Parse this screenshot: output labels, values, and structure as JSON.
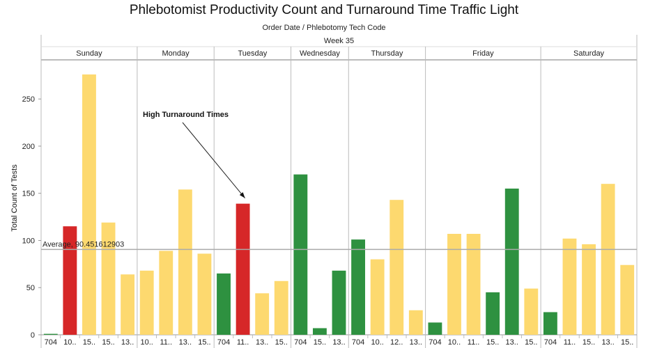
{
  "chart_data": {
    "type": "bar",
    "title": "Phlebotomist Productivity Count and Turnaround Time Traffic Light",
    "subtitle": "Order Date  /  Phlebotomy Tech Code",
    "header": "Week 35",
    "ylabel": "Total Count of Tests",
    "ylim": [
      0,
      290
    ],
    "yticks": [
      0,
      50,
      100,
      150,
      200,
      250
    ],
    "grid": false,
    "colors": {
      "red": "#d62728",
      "yellow": "#fdd96f",
      "green": "#2e9140"
    },
    "average": {
      "value": 90.451612903,
      "label": "Average, 90.451612903"
    },
    "annotation": {
      "text": "High Turnaround Times",
      "target_day": "Tuesday",
      "target_index": 1
    },
    "days": [
      {
        "name": "Sunday",
        "bars": [
          {
            "label": "704",
            "value": 1,
            "color": "green"
          },
          {
            "label": "10..",
            "value": 115,
            "color": "red"
          },
          {
            "label": "15..",
            "value": 276,
            "color": "yellow"
          },
          {
            "label": "15..",
            "value": 119,
            "color": "yellow"
          },
          {
            "label": "13..",
            "value": 64,
            "color": "yellow"
          }
        ]
      },
      {
        "name": "Monday",
        "bars": [
          {
            "label": "10..",
            "value": 68,
            "color": "yellow"
          },
          {
            "label": "11..",
            "value": 89,
            "color": "yellow"
          },
          {
            "label": "13..",
            "value": 154,
            "color": "yellow"
          },
          {
            "label": "15..",
            "value": 86,
            "color": "yellow"
          }
        ]
      },
      {
        "name": "Tuesday",
        "bars": [
          {
            "label": "704",
            "value": 65,
            "color": "green"
          },
          {
            "label": "11..",
            "value": 139,
            "color": "red"
          },
          {
            "label": "13..",
            "value": 44,
            "color": "yellow"
          },
          {
            "label": "15..",
            "value": 57,
            "color": "yellow"
          }
        ]
      },
      {
        "name": "Wednesday",
        "bars": [
          {
            "label": "704",
            "value": 170,
            "color": "green"
          },
          {
            "label": "15..",
            "value": 7,
            "color": "green"
          },
          {
            "label": "13..",
            "value": 68,
            "color": "green"
          }
        ]
      },
      {
        "name": "Thursday",
        "bars": [
          {
            "label": "704",
            "value": 101,
            "color": "green"
          },
          {
            "label": "10..",
            "value": 80,
            "color": "yellow"
          },
          {
            "label": "12..",
            "value": 143,
            "color": "yellow"
          },
          {
            "label": "13..",
            "value": 26,
            "color": "yellow"
          }
        ]
      },
      {
        "name": "Friday",
        "bars": [
          {
            "label": "704",
            "value": 13,
            "color": "green"
          },
          {
            "label": "10..",
            "value": 107,
            "color": "yellow"
          },
          {
            "label": "11..",
            "value": 107,
            "color": "yellow"
          },
          {
            "label": "15..",
            "value": 45,
            "color": "green"
          },
          {
            "label": "13..",
            "value": 155,
            "color": "green"
          },
          {
            "label": "15..",
            "value": 49,
            "color": "yellow"
          }
        ]
      },
      {
        "name": "Saturday",
        "bars": [
          {
            "label": "704",
            "value": 24,
            "color": "green"
          },
          {
            "label": "11..",
            "value": 102,
            "color": "yellow"
          },
          {
            "label": "15..",
            "value": 96,
            "color": "yellow"
          },
          {
            "label": "13..",
            "value": 160,
            "color": "yellow"
          },
          {
            "label": "15..",
            "value": 74,
            "color": "yellow"
          }
        ]
      }
    ]
  }
}
